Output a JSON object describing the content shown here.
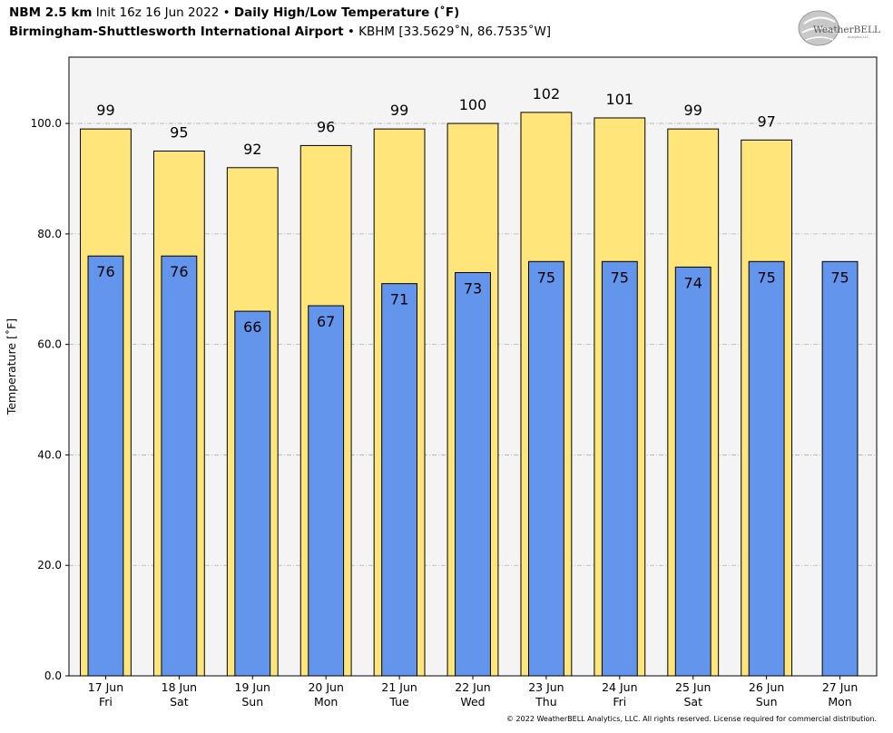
{
  "header": {
    "model": "NBM 2.5 km",
    "init": "Init 16z 16 Jun 2022",
    "bullet": "•",
    "product": "Daily High/Low Temperature (˚F)",
    "station": "Birmingham-Shuttlesworth International Airport",
    "station_info": "KBHM [33.5629˚N, 86.7535˚W]"
  },
  "logo": {
    "text_main": "WeatherBELL",
    "text_sub": "Analytics LLC"
  },
  "copyright": "© 2022 WeatherBELL Analytics, LLC. All rights reserved. License required for commercial distribution.",
  "colors": {
    "high": "#ffe57a",
    "low": "#6495ed",
    "plot_bg": "#f4f4f4",
    "grid": "#b0b0b0"
  },
  "chart_data": {
    "type": "bar",
    "categories": [
      "17 Jun",
      "18 Jun",
      "19 Jun",
      "20 Jun",
      "21 Jun",
      "22 Jun",
      "23 Jun",
      "24 Jun",
      "25 Jun",
      "26 Jun",
      "27 Jun"
    ],
    "weekdays": [
      "Fri",
      "Sat",
      "Sun",
      "Mon",
      "Tue",
      "Wed",
      "Thu",
      "Fri",
      "Sat",
      "Sun",
      "Mon"
    ],
    "series": [
      {
        "key": "high",
        "values": [
          99,
          95,
          92,
          96,
          99,
          100,
          102,
          101,
          99,
          97,
          null
        ],
        "labels": [
          "99",
          "95",
          "92",
          "96",
          "99",
          "100",
          "102",
          "101",
          "99",
          "97",
          ""
        ]
      },
      {
        "key": "low",
        "values": [
          76,
          76,
          66,
          67,
          71,
          73,
          75,
          75,
          74,
          75,
          75
        ],
        "labels": [
          "76",
          "76",
          "66",
          "67",
          "71",
          "73",
          "75",
          "75",
          "74",
          "75",
          "75"
        ]
      }
    ],
    "ylabel": "Temperature [˚F]",
    "ylim": [
      0,
      112
    ],
    "yticks": [
      0,
      20,
      40,
      60,
      80,
      100
    ],
    "ytick_labels": [
      "0.0",
      "20.0",
      "40.0",
      "60.0",
      "80.0",
      "100.0"
    ],
    "grid": true
  }
}
